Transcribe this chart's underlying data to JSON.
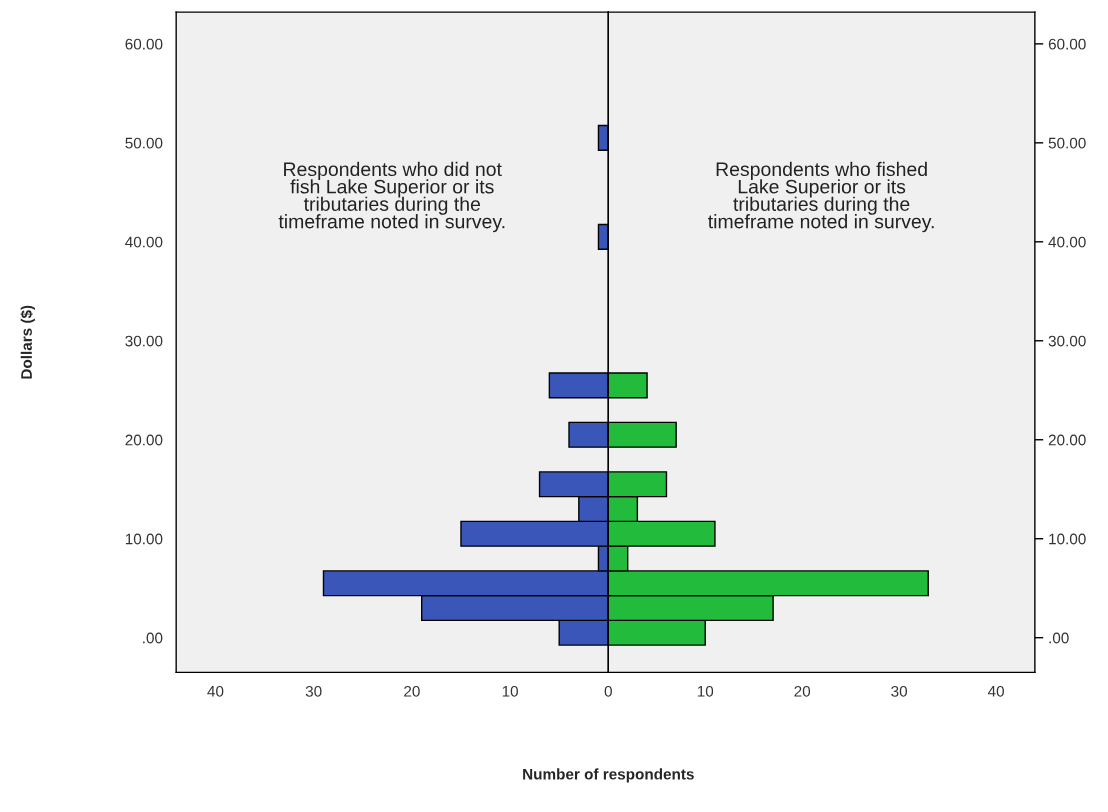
{
  "chart_data": [
    {
      "type": "histogram",
      "orientation": "horizontal",
      "ylabel": "Dollars ($)",
      "xlabel": "Number of respondents",
      "annotations": [
        "Respondents who did not\nfish Lake Superior or its\ntributaries during the\ntimeframe noted in survey."
      ],
      "bins": [
        -0.75,
        1.75,
        4.25,
        6.75,
        9.25,
        11.75,
        14.25,
        16.75,
        19.25,
        21.75,
        24.25,
        26.75,
        29.25,
        31.75,
        34.25,
        36.75,
        39.25,
        41.75,
        44.25,
        46.75,
        49.25,
        51.75
      ],
      "values": [
        5,
        19,
        29,
        1,
        15,
        3,
        7,
        0,
        4,
        0,
        6,
        0,
        0,
        0,
        0,
        0,
        1,
        0,
        0,
        0,
        1
      ],
      "color": "#3a56b8",
      "xlim": [
        44,
        0
      ],
      "xticks": [
        40,
        30,
        20,
        10,
        0
      ],
      "ylim": [
        -3.5,
        63.2
      ],
      "yticks": [
        {
          "value": 0,
          "label": ".00"
        },
        {
          "value": 10,
          "label": "10.00"
        },
        {
          "value": 20,
          "label": "20.00"
        },
        {
          "value": 30,
          "label": "30.00"
        },
        {
          "value": 40,
          "label": "40.00"
        },
        {
          "value": 50,
          "label": "50.00"
        },
        {
          "value": 60,
          "label": "60.00"
        }
      ]
    },
    {
      "type": "histogram",
      "orientation": "horizontal",
      "annotations": [
        "Respondents who fished\nLake Superior or its\ntributaries during the\ntimeframe noted in survey."
      ],
      "bins": [
        -0.75,
        1.75,
        4.25,
        6.75,
        9.25,
        11.75,
        14.25,
        16.75,
        19.25,
        21.75,
        24.25,
        26.75,
        29.25,
        31.75,
        34.25,
        36.75,
        39.25,
        41.75,
        44.25,
        46.75,
        49.25,
        51.75
      ],
      "values": [
        10,
        17,
        33,
        2,
        11,
        3,
        6,
        0,
        7,
        0,
        4,
        0,
        0,
        0,
        0,
        0,
        0,
        0,
        0,
        0,
        0
      ],
      "color": "#22bb3c",
      "xlim": [
        0,
        44
      ],
      "xticks": [
        10,
        20,
        30,
        40
      ],
      "ylim": [
        -3.5,
        63.2
      ],
      "yticks": [
        {
          "value": 0,
          "label": ".00"
        },
        {
          "value": 10,
          "label": "10.00"
        },
        {
          "value": 20,
          "label": "20.00"
        },
        {
          "value": 30,
          "label": "30.00"
        },
        {
          "value": 40,
          "label": "40.00"
        },
        {
          "value": 50,
          "label": "50.00"
        },
        {
          "value": 60,
          "label": "60.00"
        }
      ]
    }
  ]
}
